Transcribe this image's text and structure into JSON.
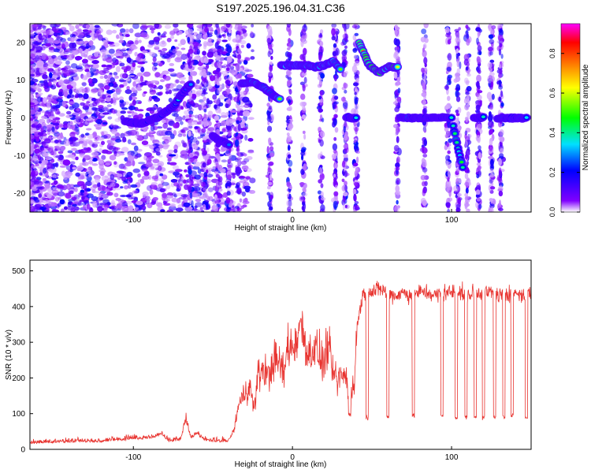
{
  "title": "S197.2025.196.04.31.C36",
  "chart_data": [
    {
      "type": "heatmap",
      "xlabel": "Height of straight line (km)",
      "ylabel": "Frequency (Hz)",
      "xlim": [
        -165,
        150
      ],
      "ylim": [
        -25,
        25
      ],
      "xticks": [
        -100,
        0,
        100
      ],
      "yticks": [
        -20,
        -10,
        0,
        10,
        20
      ],
      "colorbar": {
        "label": "Normalized spectral amplitude",
        "range": [
          0,
          0.95
        ],
        "ticks": [
          0.0,
          0.2,
          0.4,
          0.6,
          0.8
        ],
        "colors": [
          "#ffffff",
          "#8000ff",
          "#0000ff",
          "#00e0ff",
          "#00ff00",
          "#ffff00",
          "#ff8000",
          "#ff0000",
          "#ff00ff"
        ]
      },
      "traces": [
        {
          "x": [
            -105,
            -95,
            -85,
            -75,
            -70,
            -64
          ],
          "freq": [
            -1,
            -1.5,
            0,
            3,
            6,
            9
          ],
          "amp": 0.35
        },
        {
          "x": [
            -50,
            -45,
            -40
          ],
          "freq": [
            -5,
            -6,
            -7
          ],
          "amp": 0.3
        },
        {
          "x": [
            -32,
            -25,
            -18,
            -12,
            -8
          ],
          "freq": [
            9,
            9.5,
            8,
            6,
            5
          ],
          "amp": 0.55
        },
        {
          "x": [
            -7,
            0,
            7,
            14,
            20,
            26,
            30
          ],
          "freq": [
            14,
            14,
            14,
            13.5,
            14,
            15,
            13
          ],
          "amp": 0.6
        },
        {
          "x": [
            34,
            40
          ],
          "freq": [
            0,
            0
          ],
          "amp": 0.4
        },
        {
          "x": [
            42,
            48,
            54,
            60,
            66
          ],
          "freq": [
            20,
            14,
            12,
            13.5,
            13.5
          ],
          "amp": 0.85
        },
        {
          "x": [
            68,
            80,
            90,
            100
          ],
          "freq": [
            0,
            0,
            0,
            0
          ],
          "amp": 0.45
        },
        {
          "x": [
            101,
            104,
            107
          ],
          "freq": [
            -2,
            -8,
            -13
          ],
          "amp": 0.45
        },
        {
          "x": [
            114,
            120
          ],
          "freq": [
            0,
            0
          ],
          "amp": 0.4
        },
        {
          "x": [
            129,
            137,
            147
          ],
          "freq": [
            0,
            0,
            0
          ],
          "amp": 0.45
        }
      ]
    },
    {
      "type": "line",
      "xlabel": "Height of straight line (km)",
      "ylabel": "SNR (10 * v/v)",
      "xlim": [
        -165,
        150
      ],
      "ylim": [
        0,
        530
      ],
      "xticks": [
        -100,
        0,
        100
      ],
      "yticks": [
        0,
        100,
        200,
        300,
        400,
        500
      ],
      "color": "#e8332f",
      "series": [
        {
          "x": [
            -165,
            -150,
            -135,
            -120,
            -105,
            -95,
            -88,
            -82,
            -78,
            -70,
            -67,
            -64,
            -60,
            -55,
            -50,
            -45,
            -40,
            -37,
            -34,
            -30,
            -27,
            -24,
            -22,
            -18,
            -15,
            -12,
            -8,
            -5,
            -3,
            0,
            3,
            5,
            8,
            10,
            13,
            16,
            18,
            20,
            22,
            25,
            28,
            30,
            33,
            35,
            37,
            39,
            40,
            42,
            44,
            46,
            48,
            50,
            55,
            60,
            65,
            70,
            75,
            80,
            85,
            90,
            95,
            100,
            105,
            110,
            115,
            120,
            125,
            130,
            135,
            140,
            145,
            150
          ],
          "values": [
            15,
            18,
            20,
            20,
            25,
            28,
            30,
            40,
            20,
            25,
            90,
            30,
            40,
            25,
            20,
            20,
            20,
            50,
            120,
            160,
            180,
            110,
            200,
            230,
            200,
            250,
            240,
            210,
            300,
            280,
            320,
            360,
            310,
            260,
            290,
            270,
            250,
            240,
            300,
            220,
            190,
            200,
            210,
            170,
            150,
            180,
            320,
            380,
            430,
            440,
            450,
            440,
            450,
            440,
            430,
            440,
            430,
            440,
            440,
            430,
            440,
            440,
            440,
            430,
            440,
            440,
            440,
            430,
            440,
            440,
            430,
            440
          ]
        }
      ],
      "dropouts": [
        {
          "x": 36,
          "value": 100
        },
        {
          "x": 47,
          "value": 90
        },
        {
          "x": 60,
          "value": 90
        },
        {
          "x": 76,
          "value": 95
        },
        {
          "x": 94,
          "value": 95
        },
        {
          "x": 103,
          "value": 90
        },
        {
          "x": 109,
          "value": 90
        },
        {
          "x": 115,
          "value": 90
        },
        {
          "x": 120,
          "value": 90
        },
        {
          "x": 127,
          "value": 90
        },
        {
          "x": 133,
          "value": 90
        },
        {
          "x": 138,
          "value": 95
        },
        {
          "x": 147,
          "value": 90
        }
      ]
    }
  ]
}
